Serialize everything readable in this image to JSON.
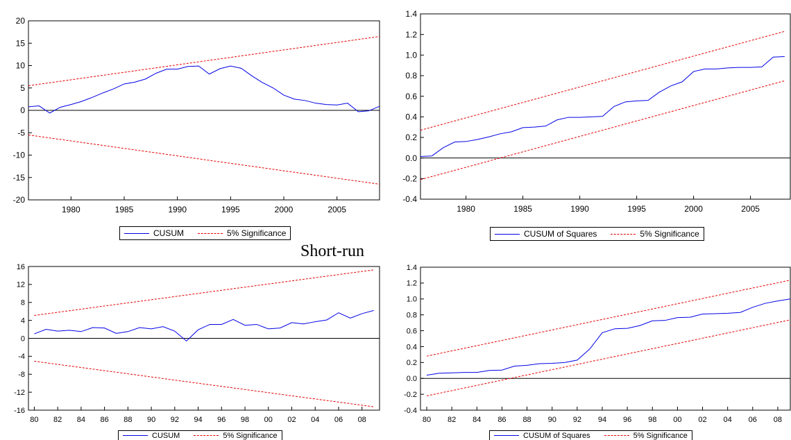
{
  "section_caption": "Short-run",
  "colors": {
    "series": "#0000e6",
    "bounds": "#e60000",
    "zero": "#000000"
  },
  "chart_data": [
    {
      "id": "top-left",
      "type": "line",
      "title": "",
      "x": [
        1976,
        1977,
        1978,
        1979,
        1980,
        1981,
        1982,
        1983,
        1984,
        1985,
        1986,
        1987,
        1988,
        1989,
        1990,
        1991,
        1992,
        1993,
        1994,
        1995,
        1996,
        1997,
        1998,
        1999,
        2000,
        2001,
        2002,
        2003,
        2004,
        2005,
        2006,
        2007,
        2008,
        2009
      ],
      "xlim": [
        1976,
        2009
      ],
      "xticks": [
        1980,
        1985,
        1990,
        1995,
        2000,
        2005
      ],
      "xtick_labels": [
        "1980",
        "1985",
        "1990",
        "1995",
        "2000",
        "2005"
      ],
      "ylim": [
        -20,
        20
      ],
      "yticks": [
        -20,
        -15,
        -10,
        -5,
        0,
        5,
        10,
        15,
        20
      ],
      "ytick_labels": [
        "-20",
        "-15",
        "-10",
        "-5",
        "0",
        "5",
        "10",
        "15",
        "20"
      ],
      "grid": false,
      "legend_position": "bottom-center",
      "series": [
        {
          "name": "CUSUM",
          "style": "solid",
          "values": [
            0.8,
            1.0,
            -0.6,
            0.7,
            1.3,
            2.0,
            2.9,
            3.9,
            4.8,
            5.9,
            6.3,
            7.0,
            8.3,
            9.2,
            9.2,
            9.8,
            9.9,
            8.1,
            9.3,
            9.9,
            9.4,
            7.7,
            6.2,
            5.0,
            3.4,
            2.5,
            2.2,
            1.6,
            1.3,
            1.2,
            1.6,
            -0.3,
            -0.1,
            0.9
          ]
        },
        {
          "name": "5% Significance",
          "style": "dashed",
          "values": [
            5.5,
            5.83,
            6.17,
            6.5,
            6.83,
            7.17,
            7.5,
            7.83,
            8.17,
            8.5,
            8.83,
            9.17,
            9.5,
            9.83,
            10.17,
            10.5,
            10.83,
            11.17,
            11.5,
            11.83,
            12.17,
            12.5,
            12.83,
            13.17,
            13.5,
            13.83,
            14.17,
            14.5,
            14.83,
            15.17,
            15.5,
            15.83,
            16.17,
            16.5
          ]
        },
        {
          "name": "",
          "style": "dashed",
          "values": [
            -5.5,
            -5.83,
            -6.17,
            -6.5,
            -6.83,
            -7.17,
            -7.5,
            -7.83,
            -8.17,
            -8.5,
            -8.83,
            -9.17,
            -9.5,
            -9.83,
            -10.17,
            -10.5,
            -10.83,
            -11.17,
            -11.5,
            -11.83,
            -12.17,
            -12.5,
            -12.83,
            -13.17,
            -13.5,
            -13.83,
            -14.17,
            -14.5,
            -14.83,
            -15.17,
            -15.5,
            -15.83,
            -16.17,
            -16.5
          ]
        }
      ],
      "legend": [
        "CUSUM",
        "5% Significance"
      ]
    },
    {
      "id": "top-right",
      "type": "line",
      "title": "",
      "x": [
        1976,
        1977,
        1978,
        1979,
        1980,
        1981,
        1982,
        1983,
        1984,
        1985,
        1986,
        1987,
        1988,
        1989,
        1990,
        1991,
        1992,
        1993,
        1994,
        1995,
        1996,
        1997,
        1998,
        1999,
        2000,
        2001,
        2002,
        2003,
        2004,
        2005,
        2006,
        2007,
        2008
      ],
      "xlim": [
        1976,
        2008.5
      ],
      "xticks": [
        1980,
        1985,
        1990,
        1995,
        2000,
        2005
      ],
      "xtick_labels": [
        "1980",
        "1985",
        "1990",
        "1995",
        "2000",
        "2005"
      ],
      "ylim": [
        -0.4,
        1.4
      ],
      "yticks": [
        -0.4,
        -0.2,
        0.0,
        0.2,
        0.4,
        0.6,
        0.8,
        1.0,
        1.2,
        1.4
      ],
      "ytick_labels": [
        "-0.4",
        "-0.2",
        "0.0",
        "0.2",
        "0.4",
        "0.6",
        "0.8",
        "1.0",
        "1.2",
        "1.4"
      ],
      "grid": false,
      "legend_position": "bottom-center",
      "series": [
        {
          "name": "CUSUM of Squares",
          "style": "solid",
          "values": [
            0.015,
            0.02,
            0.1,
            0.155,
            0.16,
            0.18,
            0.205,
            0.235,
            0.255,
            0.295,
            0.3,
            0.31,
            0.37,
            0.395,
            0.395,
            0.4,
            0.405,
            0.5,
            0.545,
            0.555,
            0.56,
            0.64,
            0.7,
            0.74,
            0.84,
            0.865,
            0.865,
            0.875,
            0.88,
            0.88,
            0.885,
            0.98,
            0.985
          ]
        },
        {
          "name": "5% Significance",
          "style": "dashed",
          "values": [
            0.27,
            0.3,
            0.33,
            0.36,
            0.39,
            0.42,
            0.45,
            0.48,
            0.51,
            0.54,
            0.57,
            0.6,
            0.63,
            0.66,
            0.69,
            0.72,
            0.75,
            0.78,
            0.81,
            0.84,
            0.87,
            0.9,
            0.93,
            0.96,
            0.99,
            1.02,
            1.05,
            1.08,
            1.11,
            1.14,
            1.17,
            1.2,
            1.23
          ]
        },
        {
          "name": "",
          "style": "dashed",
          "values": [
            -0.21,
            -0.18,
            -0.15,
            -0.12,
            -0.09,
            -0.06,
            -0.03,
            0.0,
            0.03,
            0.06,
            0.09,
            0.12,
            0.15,
            0.18,
            0.21,
            0.24,
            0.27,
            0.3,
            0.33,
            0.36,
            0.39,
            0.42,
            0.45,
            0.48,
            0.51,
            0.54,
            0.57,
            0.6,
            0.63,
            0.66,
            0.69,
            0.72,
            0.75
          ]
        }
      ],
      "legend": [
        "CUSUM of Squares",
        "5% Significance"
      ]
    },
    {
      "id": "bottom-left",
      "type": "line",
      "title": "",
      "x": [
        1980,
        1981,
        1982,
        1983,
        1984,
        1985,
        1986,
        1987,
        1988,
        1989,
        1990,
        1991,
        1992,
        1993,
        1994,
        1995,
        1996,
        1997,
        1998,
        1999,
        2000,
        2001,
        2002,
        2003,
        2004,
        2005,
        2006,
        2007,
        2008,
        2009
      ],
      "xlim": [
        1979.5,
        2009.5
      ],
      "xticks": [
        1980,
        1982,
        1984,
        1986,
        1988,
        1990,
        1992,
        1994,
        1996,
        1998,
        2000,
        2002,
        2004,
        2006,
        2008
      ],
      "xtick_labels": [
        "80",
        "82",
        "84",
        "86",
        "88",
        "90",
        "92",
        "94",
        "96",
        "98",
        "00",
        "02",
        "04",
        "06",
        "08"
      ],
      "ylim": [
        -16,
        16
      ],
      "yticks": [
        -16,
        -12,
        -8,
        -4,
        0,
        4,
        8,
        12,
        16
      ],
      "ytick_labels": [
        "-16",
        "-12",
        "-8",
        "-4",
        "0",
        "4",
        "8",
        "12",
        "16"
      ],
      "grid": false,
      "legend_position": "bottom-center",
      "series": [
        {
          "name": "CUSUM",
          "style": "solid",
          "values": [
            1.0,
            2.0,
            1.6,
            1.8,
            1.5,
            2.4,
            2.3,
            1.1,
            1.5,
            2.4,
            2.1,
            2.6,
            1.6,
            -0.6,
            1.9,
            3.1,
            3.1,
            4.2,
            2.9,
            3.1,
            2.1,
            2.3,
            3.5,
            3.2,
            3.7,
            4.1,
            5.7,
            4.5,
            5.5,
            6.2
          ]
        },
        {
          "name": "5% Significance",
          "style": "dashed",
          "values": [
            5.1,
            5.45,
            5.8,
            6.15,
            6.5,
            6.85,
            7.2,
            7.55,
            7.9,
            8.25,
            8.6,
            8.95,
            9.3,
            9.65,
            10.0,
            10.35,
            10.7,
            11.05,
            11.4,
            11.75,
            12.1,
            12.45,
            12.8,
            13.15,
            13.5,
            13.85,
            14.2,
            14.55,
            14.9,
            15.25
          ]
        },
        {
          "name": "",
          "style": "dashed",
          "values": [
            -5.1,
            -5.45,
            -5.8,
            -6.15,
            -6.5,
            -6.85,
            -7.2,
            -7.55,
            -7.9,
            -8.25,
            -8.6,
            -8.95,
            -9.3,
            -9.65,
            -10.0,
            -10.35,
            -10.7,
            -11.05,
            -11.4,
            -11.75,
            -12.1,
            -12.45,
            -12.8,
            -13.15,
            -13.5,
            -13.85,
            -14.2,
            -14.55,
            -14.9,
            -15.25
          ]
        }
      ],
      "legend": [
        "CUSUM",
        "5% Significance"
      ]
    },
    {
      "id": "bottom-right",
      "type": "line",
      "title": "",
      "x": [
        1980,
        1981,
        1982,
        1983,
        1984,
        1985,
        1986,
        1987,
        1988,
        1989,
        1990,
        1991,
        1992,
        1993,
        1994,
        1995,
        1996,
        1997,
        1998,
        1999,
        2000,
        2001,
        2002,
        2003,
        2004,
        2005,
        2006,
        2007,
        2008,
        2009
      ],
      "xlim": [
        1979.5,
        2009
      ],
      "xticks": [
        1980,
        1982,
        1984,
        1986,
        1988,
        1990,
        1992,
        1994,
        1996,
        1998,
        2000,
        2002,
        2004,
        2006,
        2008
      ],
      "xtick_labels": [
        "80",
        "82",
        "84",
        "86",
        "88",
        "90",
        "92",
        "94",
        "96",
        "98",
        "00",
        "02",
        "04",
        "06",
        "08"
      ],
      "ylim": [
        -0.4,
        1.4
      ],
      "yticks": [
        -0.4,
        -0.2,
        0.0,
        0.2,
        0.4,
        0.6,
        0.8,
        1.0,
        1.2,
        1.4
      ],
      "ytick_labels": [
        "-0.4",
        "-0.2",
        "0.0",
        "0.2",
        "0.4",
        "0.6",
        "0.8",
        "1.0",
        "1.2",
        "1.4"
      ],
      "grid": false,
      "legend_position": "bottom-center",
      "series": [
        {
          "name": "CUSUM of Squares",
          "style": "solid",
          "values": [
            0.04,
            0.065,
            0.07,
            0.075,
            0.075,
            0.1,
            0.105,
            0.155,
            0.165,
            0.185,
            0.19,
            0.2,
            0.23,
            0.37,
            0.575,
            0.625,
            0.63,
            0.665,
            0.725,
            0.73,
            0.765,
            0.77,
            0.81,
            0.815,
            0.82,
            0.83,
            0.895,
            0.945,
            0.975,
            1.0
          ]
        },
        {
          "name": "5% Significance",
          "style": "dashed",
          "values": [
            0.28,
            0.313,
            0.346,
            0.379,
            0.412,
            0.445,
            0.478,
            0.511,
            0.544,
            0.577,
            0.61,
            0.643,
            0.676,
            0.709,
            0.742,
            0.775,
            0.808,
            0.841,
            0.874,
            0.907,
            0.94,
            0.973,
            1.006,
            1.039,
            1.072,
            1.105,
            1.138,
            1.171,
            1.204,
            1.237
          ]
        },
        {
          "name": "",
          "style": "dashed",
          "values": [
            -0.22,
            -0.187,
            -0.154,
            -0.121,
            -0.088,
            -0.055,
            -0.022,
            0.011,
            0.044,
            0.077,
            0.11,
            0.143,
            0.176,
            0.209,
            0.242,
            0.275,
            0.308,
            0.341,
            0.374,
            0.407,
            0.44,
            0.473,
            0.506,
            0.539,
            0.572,
            0.605,
            0.638,
            0.671,
            0.704,
            0.737
          ]
        }
      ],
      "legend": [
        "CUSUM of Squares",
        "5% Significance"
      ]
    }
  ]
}
